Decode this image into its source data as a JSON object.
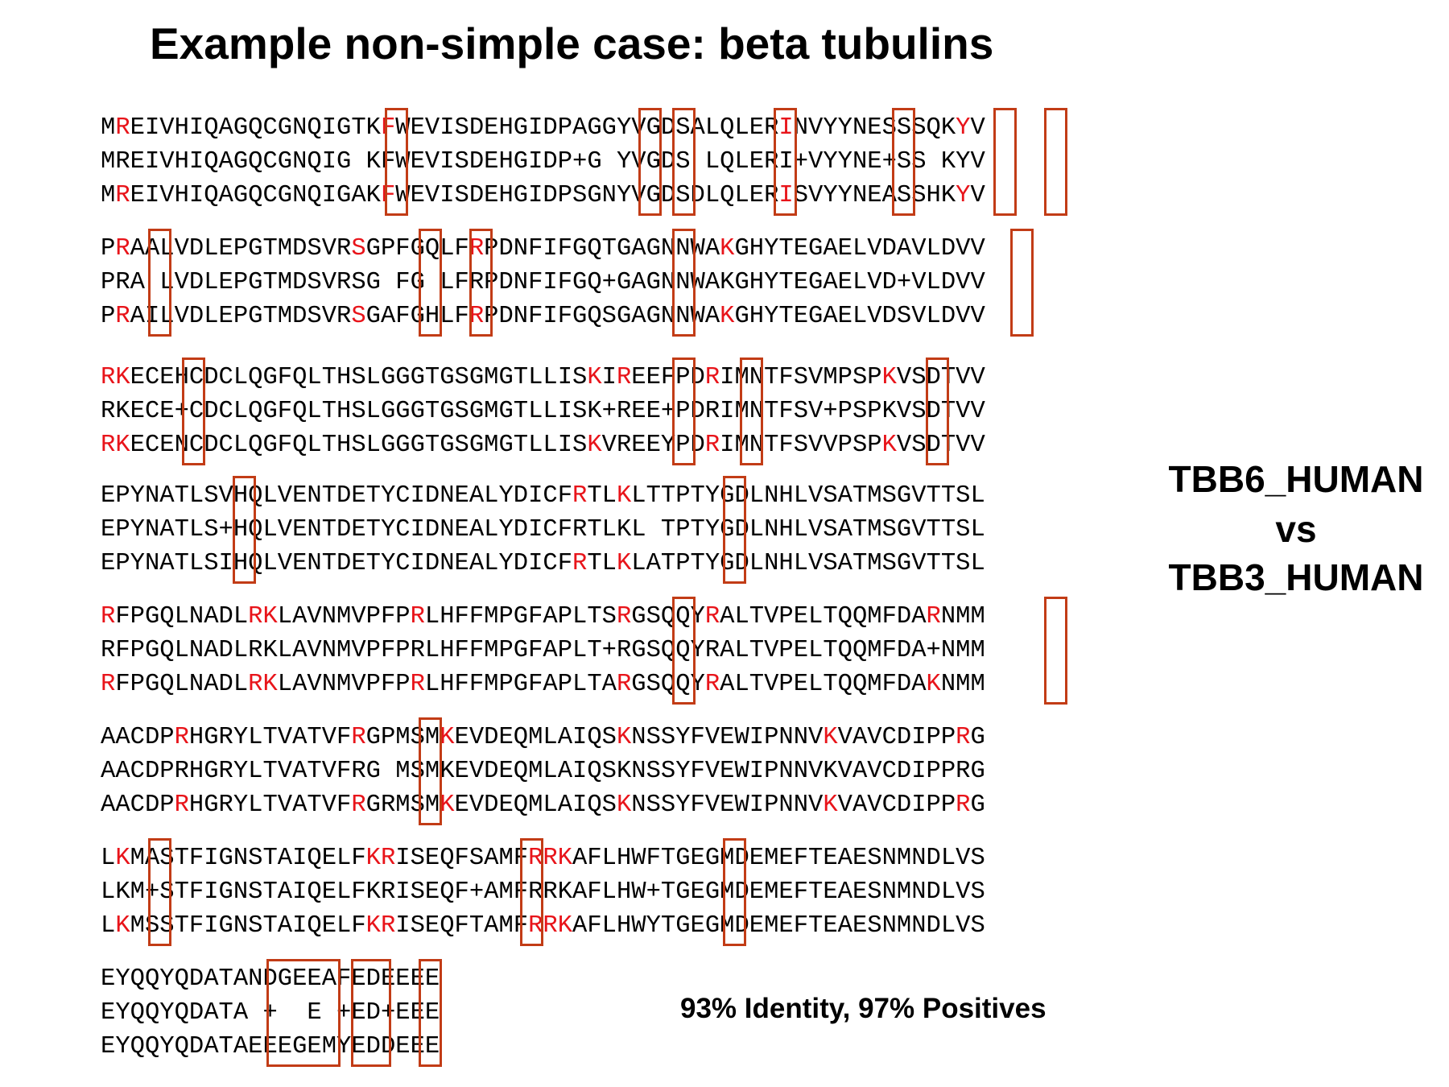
{
  "title": "Example non-simple case: beta tubulins",
  "proteins": {
    "query": "TBB6_HUMAN",
    "vs": "vs",
    "subject": "TBB3_HUMAN"
  },
  "stats_text": "93% Identity, 97% Positives",
  "colors": {
    "highlight_residue": "#e8141a",
    "box_outline": "#c23c16",
    "text": "#000000"
  },
  "alignment_blocks": [
    {
      "lines": [
        "MREIVHIQAGQCGNQIGTKFWEVISDEHGIDPAGGYVGDSALQLERINVYYNESSSQKYV",
        "MREIVHIQAGQCGNQIG KFWEVISDEHGIDP+G YVGDS LQLERI+VYYNE+SS KYV",
        "MREIVHIQAGQCGNQIGAKFWEVISDEHGIDPSGNYVGDSDLQLERISVYYNEASSHKYV"
      ],
      "red": [
        [
          1,
          19,
          46,
          58
        ],
        [],
        [
          1,
          19,
          46,
          58
        ]
      ],
      "boxes": [
        17,
        32,
        34,
        40,
        47,
        53,
        56
      ]
    },
    {
      "lines": [
        "PRAALVDLEPGTMDSVRSGPFGQLFRPDNFIFGQTGAGNNWAKGHYTEGAELVDAVLDVV",
        "PRA LVDLEPGTMDSVRSG FG LFRPDNFIFGQ+GAGNNWAKGHYTEGAELVD+VLDVV",
        "PRAILVDLEPGTMDSVRSGAFGHLFRPDNFIFGQSGAGNNWAKGHYTEGAELVDSVLDVV"
      ],
      "red": [
        [
          1,
          17,
          25,
          42
        ],
        [],
        [
          1,
          17,
          25,
          42
        ]
      ],
      "boxes": [
        3,
        19,
        22,
        34,
        54
      ]
    },
    {
      "lines": [
        "RKECEHCDCLQGFQLTHSLGGGTGSGMGTLLISKIREEFPDRIMNTFSVMPSPKVSDTVV",
        "RKECE+CDCLQGFQLTHSLGGGTGSGMGTLLISK+REE+PDRIMNTFSV+PSPKVSDTVV",
        "RKECENCDCLQGFQLTHSLGGGTGSGMGTLLISKVREEYPDRIMNTFSVVPSPKVSDTVV"
      ],
      "red": [
        [
          0,
          1,
          33,
          35,
          41,
          53
        ],
        [],
        [
          0,
          1,
          33,
          41,
          53
        ]
      ],
      "boxes": [
        5,
        34,
        38,
        49
      ]
    },
    {
      "lines": [
        "EPYNATLSVHQLVENTDETYCIDNEALYDICFRTLKLTTPTYGDLNHLVSATMSGVTTSL",
        "EPYNATLS+HQLVENTDETYCIDNEALYDICFRTLKL TPTYGDLNHLVSATMSGVTTSL",
        "EPYNATLSIHQLVENTDETYCIDNEALYDICFRTLKLATPTYGDLNHLVSATMSGVTTSL"
      ],
      "red": [
        [
          32,
          35
        ],
        [],
        [
          32,
          35
        ]
      ],
      "boxes": [
        8,
        37
      ]
    },
    {
      "lines": [
        "RFPGQLNADLRKLAVNMVPFPRLHFFMPGFAPLTSRGSQQYRALTVPELTQQMFDARNMM",
        "RFPGQLNADLRKLAVNMVPFPRLHFFMPGFAPLT+RGSQQYRALTVPELTQQMFDA+NMM",
        "RFPGQLNADLRKLAVNMVPFPRLHFFMPGFAPLTARGSQQYRALTVPELTQQMFDAKNMM"
      ],
      "red": [
        [
          0,
          10,
          11,
          21,
          35,
          41,
          56
        ],
        [],
        [
          0,
          10,
          11,
          21,
          35,
          41,
          56
        ]
      ],
      "boxes": [
        34,
        56
      ]
    },
    {
      "lines": [
        "AACDPRHGRYLTVATVFRGPMSMKEVDEQMLAIQSKNSSYFVEWIPNNVKVAVCDIPPRG",
        "AACDPRHGRYLTVATVFRG MSMKEVDEQMLAIQSKNSSYFVEWIPNNVKVAVCDIPPRG",
        "AACDPRHGRYLTVATVFRGRMSMKEVDEQMLAIQSKNSSYFVEWIPNNVKVAVCDIPPRG"
      ],
      "red": [
        [
          5,
          17,
          23,
          35,
          49,
          58
        ],
        [],
        [
          5,
          17,
          23,
          35,
          49,
          58
        ]
      ],
      "boxes": [
        19
      ]
    },
    {
      "lines": [
        "LKMASTFIGNSTAIQELFKRISEQFSAMFRRKAFLHWFTGEGMDEMEFTEAESNMNDLVS",
        "LKM+STFIGNSTAIQELFKRISEQF+AMFRRKAFLHW+TGEGMDEMEFTEAESNMNDLVS",
        "LKMSSTFIGNSTAIQELFKRISEQFTAMFRRKAFLHWYTGEGMDEMEFTEAESNMNDLVS"
      ],
      "red": [
        [
          1,
          18,
          19,
          29,
          30,
          31
        ],
        [],
        [
          1,
          18,
          19,
          29,
          30,
          31
        ]
      ],
      "boxes": [
        3,
        25,
        37
      ]
    },
    {
      "lines": [
        "EYQQYQDATANDGEEAFEDEEEE",
        "EYQQYQDATA +  E +ED+EEE",
        "EYQQYQDATAEEEGEMYEDDEEE"
      ],
      "red": [
        [],
        [],
        []
      ],
      "boxes": [
        [
          10,
          13
        ],
        [
          15,
          16
        ],
        [
          19,
          19
        ]
      ]
    }
  ]
}
